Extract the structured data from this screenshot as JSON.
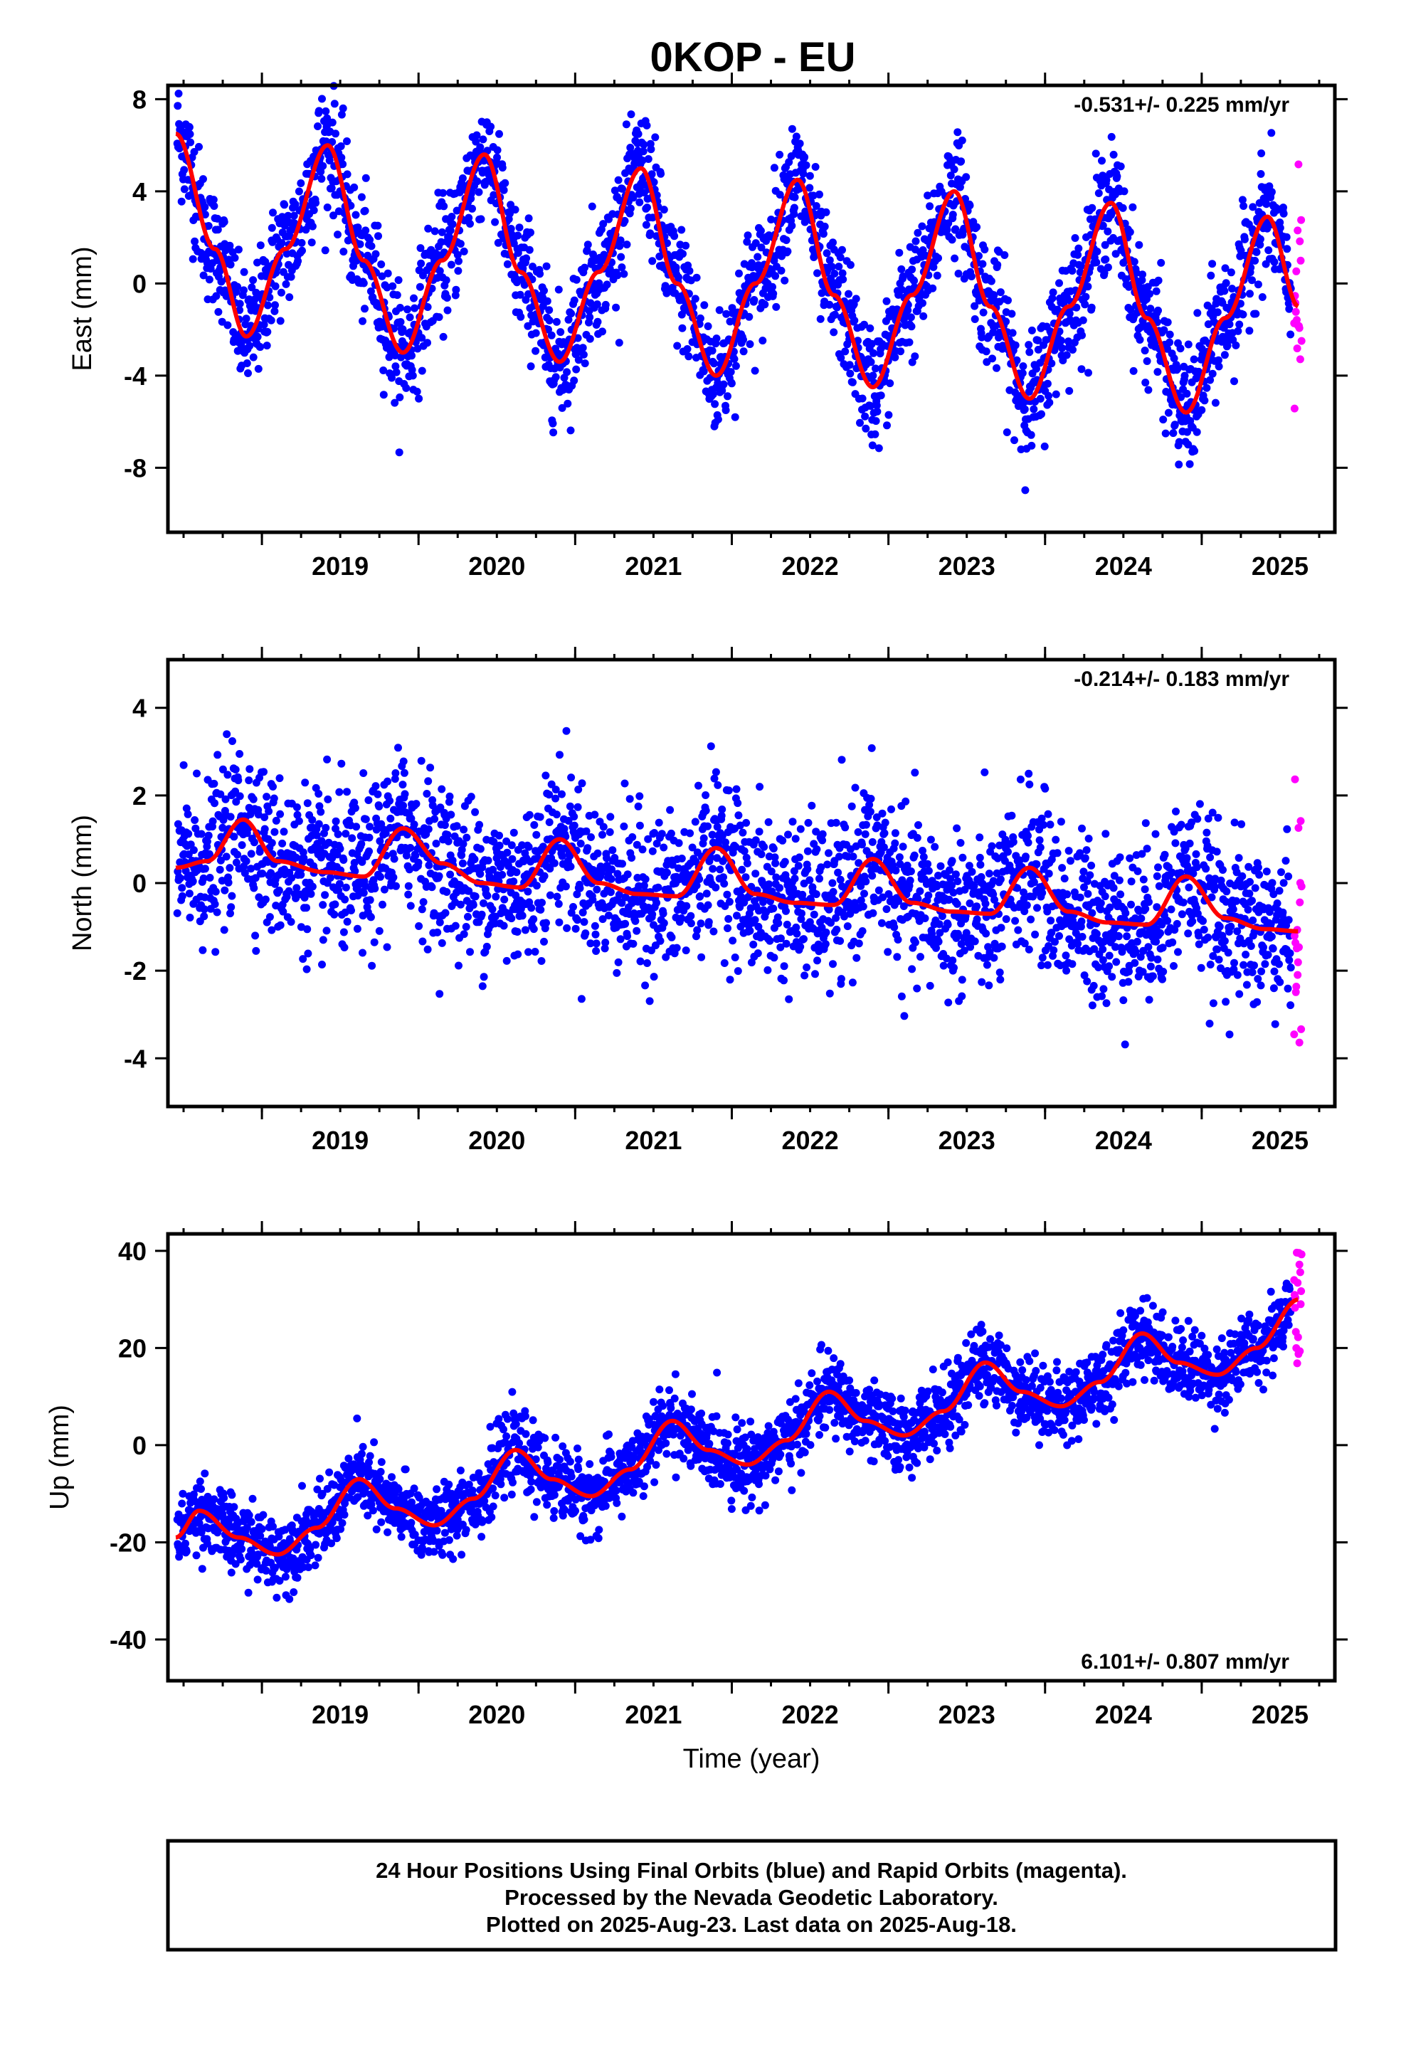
{
  "chart_data": {
    "type": "scatter",
    "title": "0KOP - EU",
    "x_label": "Time (year)",
    "x_tick_labels": [
      "2019",
      "2020",
      "2021",
      "2022",
      "2023",
      "2024",
      "2025"
    ],
    "x_range": [
      2018.4,
      2025.85
    ],
    "colors": {
      "final": "#0000ff",
      "rapid": "#ff00ff",
      "model": "#ff0000"
    },
    "panels": [
      {
        "name": "east",
        "ylabel": "East (mm)",
        "ylim": [
          -10.8,
          8.6
        ],
        "yticks": [
          8,
          4,
          0,
          -4,
          -8
        ],
        "ytick_labels": [
          "8",
          "4",
          "0",
          "-4",
          "-8"
        ],
        "rate_text": "-0.531+/- 0.225 mm/yr",
        "rate_position": "top-right",
        "series": [
          {
            "name": "Final Orbits",
            "color": "#0000ff",
            "description_points": "daily positions 2018.45-2025.58",
            "model_points": [
              [
                2018.45,
                6.5
              ],
              [
                2018.7,
                1.5
              ],
              [
                2018.9,
                -2.3
              ],
              [
                2019.15,
                1.5
              ],
              [
                2019.42,
                6.0
              ],
              [
                2019.65,
                1.0
              ],
              [
                2019.9,
                -3.0
              ],
              [
                2020.15,
                1.0
              ],
              [
                2020.42,
                5.6
              ],
              [
                2020.65,
                0.5
              ],
              [
                2020.9,
                -3.4
              ],
              [
                2021.15,
                0.5
              ],
              [
                2021.42,
                5.0
              ],
              [
                2021.65,
                0.0
              ],
              [
                2021.9,
                -4.0
              ],
              [
                2022.15,
                0.0
              ],
              [
                2022.42,
                4.5
              ],
              [
                2022.65,
                -0.5
              ],
              [
                2022.9,
                -4.5
              ],
              [
                2023.15,
                -0.5
              ],
              [
                2023.42,
                4.0
              ],
              [
                2023.65,
                -1.0
              ],
              [
                2023.9,
                -5.0
              ],
              [
                2024.15,
                -1.0
              ],
              [
                2024.42,
                3.5
              ],
              [
                2024.65,
                -1.5
              ],
              [
                2024.9,
                -5.6
              ],
              [
                2025.15,
                -1.5
              ],
              [
                2025.42,
                2.9
              ],
              [
                2025.62,
                -1.0
              ]
            ]
          },
          {
            "name": "Rapid Orbits",
            "color": "#ff00ff"
          }
        ]
      },
      {
        "name": "north",
        "ylabel": "North (mm)",
        "ylim": [
          -5.1,
          5.1
        ],
        "yticks": [
          4,
          2,
          0,
          -2,
          -4
        ],
        "ytick_labels": [
          "4",
          "2",
          "0",
          "-2",
          "-4"
        ],
        "rate_text": "-0.214+/- 0.183 mm/yr",
        "rate_position": "top-right",
        "series": [
          {
            "name": "Final Orbits",
            "color": "#0000ff",
            "model_points": [
              [
                2018.45,
                0.35
              ],
              [
                2018.65,
                0.5
              ],
              [
                2018.88,
                1.45
              ],
              [
                2019.1,
                0.5
              ],
              [
                2019.4,
                0.25
              ],
              [
                2019.65,
                0.15
              ],
              [
                2019.9,
                1.25
              ],
              [
                2020.15,
                0.45
              ],
              [
                2020.4,
                0.0
              ],
              [
                2020.65,
                -0.1
              ],
              [
                2020.9,
                1.0
              ],
              [
                2021.15,
                0.0
              ],
              [
                2021.4,
                -0.25
              ],
              [
                2021.65,
                -0.3
              ],
              [
                2021.9,
                0.8
              ],
              [
                2022.15,
                -0.25
              ],
              [
                2022.4,
                -0.45
              ],
              [
                2022.65,
                -0.5
              ],
              [
                2022.9,
                0.55
              ],
              [
                2023.15,
                -0.45
              ],
              [
                2023.4,
                -0.65
              ],
              [
                2023.65,
                -0.7
              ],
              [
                2023.9,
                0.35
              ],
              [
                2024.15,
                -0.65
              ],
              [
                2024.4,
                -0.9
              ],
              [
                2024.65,
                -0.95
              ],
              [
                2024.9,
                0.15
              ],
              [
                2025.15,
                -0.8
              ],
              [
                2025.4,
                -1.05
              ],
              [
                2025.62,
                -1.1
              ]
            ]
          },
          {
            "name": "Rapid Orbits",
            "color": "#ff00ff"
          }
        ]
      },
      {
        "name": "up",
        "ylabel": "Up (mm)",
        "ylim": [
          -48.5,
          43.5
        ],
        "yticks": [
          40,
          20,
          0,
          -20,
          -40
        ],
        "ytick_labels": [
          "40",
          "20",
          "0",
          "-20",
          "-40"
        ],
        "rate_text": "6.101+/- 0.807 mm/yr",
        "rate_position": "bottom-right",
        "series": [
          {
            "name": "Final Orbits",
            "color": "#0000ff",
            "model_points": [
              [
                2018.45,
                -19.0
              ],
              [
                2018.6,
                -13.5
              ],
              [
                2018.85,
                -19.0
              ],
              [
                2019.1,
                -22.5
              ],
              [
                2019.35,
                -17.0
              ],
              [
                2019.62,
                -7.0
              ],
              [
                2019.85,
                -13.0
              ],
              [
                2020.1,
                -16.5
              ],
              [
                2020.35,
                -11.0
              ],
              [
                2020.62,
                -1.0
              ],
              [
                2020.85,
                -7.0
              ],
              [
                2021.1,
                -10.5
              ],
              [
                2021.35,
                -5.0
              ],
              [
                2021.62,
                5.0
              ],
              [
                2021.85,
                -1.0
              ],
              [
                2022.1,
                -4.0
              ],
              [
                2022.35,
                1.0
              ],
              [
                2022.62,
                11.0
              ],
              [
                2022.85,
                5.0
              ],
              [
                2023.1,
                2.0
              ],
              [
                2023.35,
                7.0
              ],
              [
                2023.62,
                17.0
              ],
              [
                2023.85,
                11.0
              ],
              [
                2024.1,
                8.0
              ],
              [
                2024.35,
                13.0
              ],
              [
                2024.62,
                23.0
              ],
              [
                2024.85,
                17.0
              ],
              [
                2025.1,
                14.5
              ],
              [
                2025.35,
                20.0
              ],
              [
                2025.62,
                30.0
              ]
            ]
          },
          {
            "name": "Rapid Orbits",
            "color": "#ff00ff"
          }
        ]
      }
    ]
  },
  "footer": {
    "line1": "24 Hour Positions Using Final Orbits (blue) and Rapid Orbits (magenta).",
    "line2": "Processed by the Nevada Geodetic Laboratory.",
    "line3": "Plotted on 2025-Aug-23. Last data on 2025-Aug-18."
  }
}
